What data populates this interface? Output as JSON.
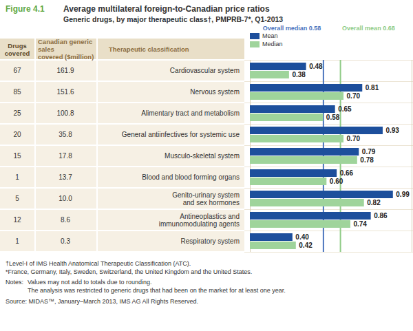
{
  "chart_data": {
    "type": "bar",
    "orientation": "horizontal",
    "figure_label": "Figure 4.1",
    "title": "Average multilateral foreign-to-Canadian price ratios",
    "subtitle": "Generic drugs, by major therapeutic class†, PMPRB-7*, Q1-2013",
    "categories": [
      "Cardiovascular system",
      "Nervous system",
      "Alimentary tract and metabolism",
      "General antiinfectives for systemic use",
      "Musculo-skeletal system",
      "Blood and blood forming organs",
      "Genito-urinary system\nand sex hormones",
      "Antineoplastics and\nimmunomodulating agents",
      "Respiratory system"
    ],
    "series": [
      {
        "name": "Mean",
        "color": "#1d4f9c",
        "values": [
          0.48,
          0.81,
          0.65,
          0.93,
          0.79,
          0.66,
          0.99,
          0.86,
          0.4
        ],
        "value_labels": [
          "0.48",
          "0.81",
          "0.65",
          "0.93",
          "0.79",
          "0.66",
          "0.99",
          "0.86",
          "0.40"
        ]
      },
      {
        "name": "Median",
        "color": "#9fd49b",
        "values": [
          0.38,
          0.7,
          0.58,
          0.7,
          0.78,
          0.6,
          0.82,
          0.74,
          0.42
        ],
        "value_labels": [
          "0.38",
          "0.70",
          "0.58",
          "0.70",
          "0.78",
          "0.60",
          "0.82",
          "0.74",
          "0.42"
        ]
      }
    ],
    "data_labels": true,
    "legend": "top",
    "grid": false,
    "tick_labels": false,
    "xlim": [
      0.15,
      1.1
    ],
    "xticks": [],
    "reference_lines": [
      {
        "label": "Overall median 0.58",
        "value": 0.58,
        "color": "#4a74bd"
      },
      {
        "label": "Overall mean 0.68",
        "value": 0.68,
        "color": "#8fcc87"
      }
    ],
    "table": {
      "headers": [
        "Drugs\ncovered",
        "Canadian generic sales\ncovered ($million)",
        "Therapeutic classification"
      ],
      "drugs_covered": [
        67,
        85,
        25,
        20,
        15,
        1,
        5,
        12,
        1
      ],
      "sales_covered": [
        161.9,
        151.6,
        100.8,
        35.8,
        17.8,
        13.7,
        10.0,
        8.6,
        0.3
      ]
    },
    "footnotes": [
      "†Level-I of IMS Health Anatomical Therapeutic Classification (ATC).",
      "*France, Germany, Italy, Sweden, Switzerland, the United Kingdom and the United States."
    ],
    "notes_label": "Notes:",
    "notes": [
      "Values may not add to totals due to rounding.",
      "The analysis was restricted to generic drugs that had been on the market for at least one year."
    ],
    "source": "Source: MIDAS™, January–March 2013, IMS AG All Rights Reserved."
  }
}
